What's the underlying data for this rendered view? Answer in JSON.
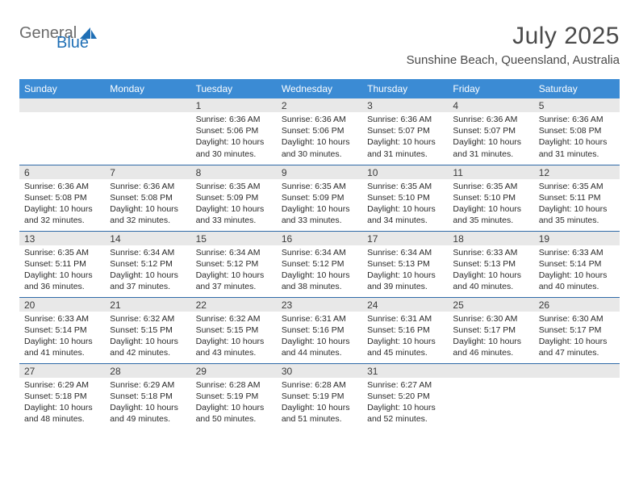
{
  "logo": {
    "part1": "General",
    "part2": "Blue"
  },
  "title": "July 2025",
  "subtitle": "Sunshine Beach, Queensland, Australia",
  "colors": {
    "header_bg": "#3b8bd4",
    "header_text": "#ffffff",
    "daynum_bg": "#e8e8e8",
    "row_border": "#2f6aa8",
    "logo_gray": "#6b6b6b",
    "logo_blue": "#1f6fb5",
    "text": "#2a2a2a"
  },
  "weekdays": [
    "Sunday",
    "Monday",
    "Tuesday",
    "Wednesday",
    "Thursday",
    "Friday",
    "Saturday"
  ],
  "weeks": [
    [
      null,
      null,
      {
        "num": "1",
        "sunrise": "6:36 AM",
        "sunset": "5:06 PM",
        "daylight": "10 hours and 30 minutes."
      },
      {
        "num": "2",
        "sunrise": "6:36 AM",
        "sunset": "5:06 PM",
        "daylight": "10 hours and 30 minutes."
      },
      {
        "num": "3",
        "sunrise": "6:36 AM",
        "sunset": "5:07 PM",
        "daylight": "10 hours and 31 minutes."
      },
      {
        "num": "4",
        "sunrise": "6:36 AM",
        "sunset": "5:07 PM",
        "daylight": "10 hours and 31 minutes."
      },
      {
        "num": "5",
        "sunrise": "6:36 AM",
        "sunset": "5:08 PM",
        "daylight": "10 hours and 31 minutes."
      }
    ],
    [
      {
        "num": "6",
        "sunrise": "6:36 AM",
        "sunset": "5:08 PM",
        "daylight": "10 hours and 32 minutes."
      },
      {
        "num": "7",
        "sunrise": "6:36 AM",
        "sunset": "5:08 PM",
        "daylight": "10 hours and 32 minutes."
      },
      {
        "num": "8",
        "sunrise": "6:35 AM",
        "sunset": "5:09 PM",
        "daylight": "10 hours and 33 minutes."
      },
      {
        "num": "9",
        "sunrise": "6:35 AM",
        "sunset": "5:09 PM",
        "daylight": "10 hours and 33 minutes."
      },
      {
        "num": "10",
        "sunrise": "6:35 AM",
        "sunset": "5:10 PM",
        "daylight": "10 hours and 34 minutes."
      },
      {
        "num": "11",
        "sunrise": "6:35 AM",
        "sunset": "5:10 PM",
        "daylight": "10 hours and 35 minutes."
      },
      {
        "num": "12",
        "sunrise": "6:35 AM",
        "sunset": "5:11 PM",
        "daylight": "10 hours and 35 minutes."
      }
    ],
    [
      {
        "num": "13",
        "sunrise": "6:35 AM",
        "sunset": "5:11 PM",
        "daylight": "10 hours and 36 minutes."
      },
      {
        "num": "14",
        "sunrise": "6:34 AM",
        "sunset": "5:12 PM",
        "daylight": "10 hours and 37 minutes."
      },
      {
        "num": "15",
        "sunrise": "6:34 AM",
        "sunset": "5:12 PM",
        "daylight": "10 hours and 37 minutes."
      },
      {
        "num": "16",
        "sunrise": "6:34 AM",
        "sunset": "5:12 PM",
        "daylight": "10 hours and 38 minutes."
      },
      {
        "num": "17",
        "sunrise": "6:34 AM",
        "sunset": "5:13 PM",
        "daylight": "10 hours and 39 minutes."
      },
      {
        "num": "18",
        "sunrise": "6:33 AM",
        "sunset": "5:13 PM",
        "daylight": "10 hours and 40 minutes."
      },
      {
        "num": "19",
        "sunrise": "6:33 AM",
        "sunset": "5:14 PM",
        "daylight": "10 hours and 40 minutes."
      }
    ],
    [
      {
        "num": "20",
        "sunrise": "6:33 AM",
        "sunset": "5:14 PM",
        "daylight": "10 hours and 41 minutes."
      },
      {
        "num": "21",
        "sunrise": "6:32 AM",
        "sunset": "5:15 PM",
        "daylight": "10 hours and 42 minutes."
      },
      {
        "num": "22",
        "sunrise": "6:32 AM",
        "sunset": "5:15 PM",
        "daylight": "10 hours and 43 minutes."
      },
      {
        "num": "23",
        "sunrise": "6:31 AM",
        "sunset": "5:16 PM",
        "daylight": "10 hours and 44 minutes."
      },
      {
        "num": "24",
        "sunrise": "6:31 AM",
        "sunset": "5:16 PM",
        "daylight": "10 hours and 45 minutes."
      },
      {
        "num": "25",
        "sunrise": "6:30 AM",
        "sunset": "5:17 PM",
        "daylight": "10 hours and 46 minutes."
      },
      {
        "num": "26",
        "sunrise": "6:30 AM",
        "sunset": "5:17 PM",
        "daylight": "10 hours and 47 minutes."
      }
    ],
    [
      {
        "num": "27",
        "sunrise": "6:29 AM",
        "sunset": "5:18 PM",
        "daylight": "10 hours and 48 minutes."
      },
      {
        "num": "28",
        "sunrise": "6:29 AM",
        "sunset": "5:18 PM",
        "daylight": "10 hours and 49 minutes."
      },
      {
        "num": "29",
        "sunrise": "6:28 AM",
        "sunset": "5:19 PM",
        "daylight": "10 hours and 50 minutes."
      },
      {
        "num": "30",
        "sunrise": "6:28 AM",
        "sunset": "5:19 PM",
        "daylight": "10 hours and 51 minutes."
      },
      {
        "num": "31",
        "sunrise": "6:27 AM",
        "sunset": "5:20 PM",
        "daylight": "10 hours and 52 minutes."
      },
      null,
      null
    ]
  ],
  "labels": {
    "sunrise": "Sunrise: ",
    "sunset": "Sunset: ",
    "daylight": "Daylight: "
  }
}
